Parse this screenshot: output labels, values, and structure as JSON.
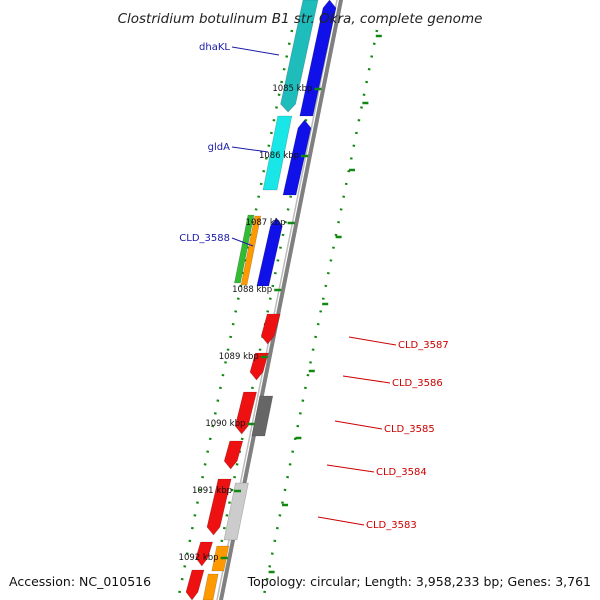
{
  "title": "Clostridium botulinum B1 str. Okra, complete genome",
  "footer": {
    "accession": "Accession: NC_010516",
    "summary": "Topology: circular; Length: 3,958,233 bp; Genes: 3,761"
  },
  "ticks": [
    "1085 kbp",
    "1086 kbp",
    "1087 kbp",
    "1088 kbp",
    "1089 kbp",
    "1090 kbp",
    "1091 kbp",
    "1092 kbp"
  ],
  "left_labels": [
    "dhaKL",
    "gldA",
    "CLD_3588"
  ],
  "right_labels": [
    "CLD_3587",
    "CLD_3586",
    "CLD_3585",
    "CLD_3584",
    "CLD_3583"
  ],
  "colors": {
    "backbone": "#808080",
    "ruler": "#118811",
    "blue_label": "#1a1aa8",
    "red_label": "#cc0000",
    "teal": "#1fbcbc",
    "cyan": "#19e6e6",
    "blue": "#1010e8",
    "red": "#ee1111",
    "green": "#33bb33",
    "orange": "#ff9900",
    "dark_gray": "#666666",
    "light_gray": "#cccccc"
  }
}
